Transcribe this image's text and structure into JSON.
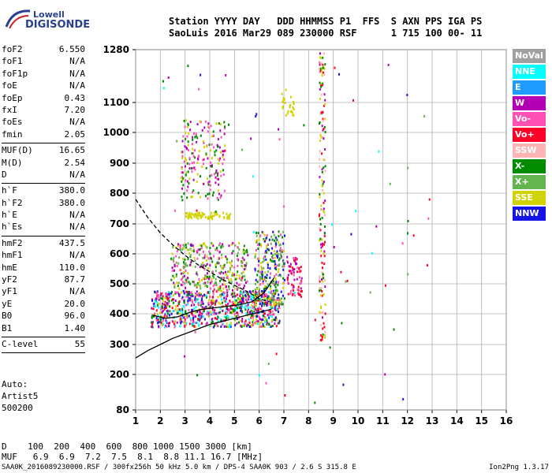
{
  "logo": {
    "line1": "Lowell",
    "line2": "DIGISONDE"
  },
  "header": {
    "line1": "Station YYYY DAY   DDD HHMMSS P1  FFS  S AXN PPS IGA PS",
    "line2": "SaoLuis 2016 Mar29 089 230000 RSF      1 715 100 00- 11"
  },
  "params": [
    {
      "k": "foF2",
      "v": "6.550"
    },
    {
      "k": "foF1",
      "v": "N/A"
    },
    {
      "k": "foF1p",
      "v": "N/A"
    },
    {
      "k": "foE",
      "v": "N/A"
    },
    {
      "k": "foEp",
      "v": "0.43"
    },
    {
      "k": "fxI",
      "v": "7.20"
    },
    {
      "k": "foEs",
      "v": "N/A"
    },
    {
      "k": "fmin",
      "v": "2.05"
    },
    {
      "sep": true
    },
    {
      "k": "MUF(D)",
      "v": "16.65"
    },
    {
      "k": "M(D)",
      "v": "2.54"
    },
    {
      "k": "D",
      "v": "N/A"
    },
    {
      "sep": true
    },
    {
      "k": "h`F",
      "v": "380.0"
    },
    {
      "k": "h`F2",
      "v": "380.0"
    },
    {
      "k": "h`E",
      "v": "N/A"
    },
    {
      "k": "h`Es",
      "v": "N/A"
    },
    {
      "sep": true
    },
    {
      "k": "hmF2",
      "v": "437.5"
    },
    {
      "k": "hmF1",
      "v": "N/A"
    },
    {
      "k": "hmE",
      "v": "110.0"
    },
    {
      "k": "yF2",
      "v": "87.7"
    },
    {
      "k": "yF1",
      "v": "N/A"
    },
    {
      "k": "yE",
      "v": "20.0"
    },
    {
      "k": "B0",
      "v": "96.0"
    },
    {
      "k": "B1",
      "v": "1.40"
    },
    {
      "sep": true
    },
    {
      "k": "C-level",
      "v": "55"
    },
    {
      "sep": true
    }
  ],
  "auto": [
    "Auto:",
    "Artist5",
    "500200"
  ],
  "legend": [
    {
      "label": "NoVal",
      "color": "#a0a0a0"
    },
    {
      "label": "NNE",
      "color": "#00ffff"
    },
    {
      "label": "E",
      "color": "#1e9bff"
    },
    {
      "label": "W",
      "color": "#b400b4"
    },
    {
      "label": "Vo-",
      "color": "#ff50b4"
    },
    {
      "label": "Vo+",
      "color": "#ff0028"
    },
    {
      "label": "SSW",
      "color": "#ffb4b4"
    },
    {
      "label": "X-",
      "color": "#008c00"
    },
    {
      "label": "X+",
      "color": "#64b450"
    },
    {
      "label": "SSE",
      "color": "#d2d200"
    },
    {
      "label": "NNW",
      "color": "#1414e6"
    }
  ],
  "footer": {
    "d_line": "D    100  200  400  600  800 1000 1500 3000 [km]",
    "muf_line": "MUF   6.9  6.9  7.2  7.5  8.1  8.8 11.1 16.7 [MHz]",
    "file_line": "SAA0K_2016089230000.RSF / 300fx256h 50 kHz 5.0 km / DPS-4 SAA0K 903 / 2.6 S 315.8 E",
    "version": "Ion2Png 1.3.17"
  },
  "chart_data": {
    "type": "scatter",
    "xlabel": "",
    "ylabel": "",
    "x_ticks": [
      1,
      2,
      3,
      4,
      5,
      6,
      7,
      8,
      9,
      10,
      11,
      12,
      13,
      14,
      15,
      16
    ],
    "y_ticks": [
      80,
      200,
      300,
      400,
      500,
      600,
      700,
      800,
      900,
      1000,
      1100,
      1280
    ],
    "xlim": [
      1,
      16
    ],
    "ylim": [
      80,
      1280
    ],
    "grid": true,
    "trace_lines": [
      {
        "name": "",
        "style": "dashed",
        "x": [
          1.0,
          1.5,
          2.0,
          2.5,
          3.0,
          3.5,
          4.0,
          4.5,
          5.0,
          5.5,
          6.0,
          6.4
        ],
        "y": [
          780,
          720,
          670,
          630,
          595,
          565,
          540,
          515,
          495,
          475,
          450,
          440
        ]
      },
      {
        "name": "",
        "style": "solid",
        "x": [
          1.0,
          1.5,
          2.0,
          2.5,
          3.0,
          3.5,
          4.0,
          4.5,
          5.0,
          5.5,
          6.0,
          6.5
        ],
        "y": [
          255,
          280,
          300,
          320,
          335,
          350,
          365,
          375,
          385,
          395,
          405,
          415
        ]
      },
      {
        "name": "",
        "style": "solid",
        "x": [
          1.7,
          2.2,
          2.7,
          3.2,
          3.7,
          4.2,
          4.7,
          5.2,
          5.7,
          6.2,
          6.6
        ],
        "y": [
          395,
          385,
          390,
          405,
          415,
          420,
          425,
          430,
          440,
          470,
          520
        ]
      }
    ],
    "clusters": [
      {
        "x0": 1.6,
        "x1": 6.8,
        "y0": 360,
        "y1": 480,
        "n": 900,
        "colors": [
          "#ff50b4",
          "#b400b4",
          "#ff0028",
          "#008c00",
          "#d2d200",
          "#1414e6",
          "#00ffff"
        ]
      },
      {
        "x0": 2.4,
        "x1": 5.5,
        "y0": 480,
        "y1": 640,
        "n": 350,
        "colors": [
          "#d2d200",
          "#ff50b4",
          "#b400b4",
          "#008c00",
          "#64b450"
        ]
      },
      {
        "x0": 5.8,
        "x1": 7.0,
        "y0": 430,
        "y1": 680,
        "n": 260,
        "colors": [
          "#008c00",
          "#64b450",
          "#d2d200",
          "#ff50b4",
          "#1414e6"
        ]
      },
      {
        "x0": 7.1,
        "x1": 7.7,
        "y0": 460,
        "y1": 600,
        "n": 70,
        "colors": [
          "#ff50b4",
          "#b400b4",
          "#ff0028"
        ]
      },
      {
        "x0": 2.8,
        "x1": 4.6,
        "y0": 780,
        "y1": 1050,
        "n": 200,
        "colors": [
          "#b400b4",
          "#d2d200",
          "#008c00",
          "#ff50b4"
        ]
      },
      {
        "x0": 3.0,
        "x1": 4.8,
        "y0": 720,
        "y1": 740,
        "n": 70,
        "colors": [
          "#d2d200"
        ]
      },
      {
        "x0": 8.4,
        "x1": 8.65,
        "y0": 300,
        "y1": 1280,
        "n": 160,
        "colors": [
          "#ffb4b4",
          "#ff0028",
          "#b400b4",
          "#008c00",
          "#d2d200"
        ]
      },
      {
        "x0": 6.8,
        "x1": 7.4,
        "y0": 1060,
        "y1": 1150,
        "n": 30,
        "colors": [
          "#d2d200"
        ]
      },
      {
        "x0": 1.8,
        "x1": 13.0,
        "y0": 100,
        "y1": 1280,
        "n": 80,
        "colors": [
          "#008c00",
          "#b400b4",
          "#ff50b4",
          "#00ffff",
          "#1414e6",
          "#64b450",
          "#ff0028"
        ]
      }
    ]
  }
}
